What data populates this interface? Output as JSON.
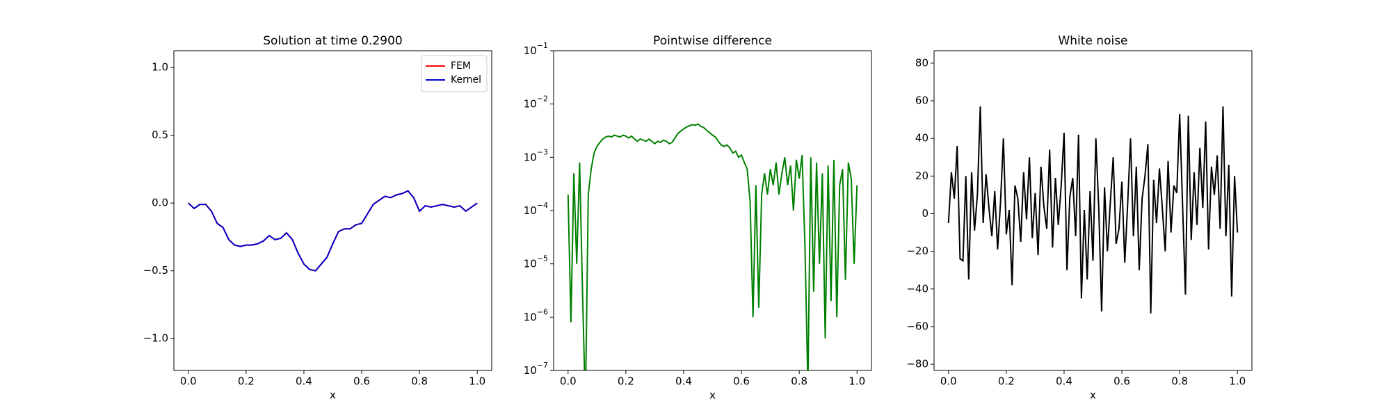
{
  "chart_data": [
    {
      "type": "line",
      "title": "Solution at time 0.2900",
      "xlabel": "x",
      "xlim": [
        -0.05,
        1.05
      ],
      "ylim": [
        -1.235,
        1.124
      ],
      "xticks": [
        {
          "value": 0,
          "label": "0.0"
        },
        {
          "value": 0.2,
          "label": "0.2"
        },
        {
          "value": 0.4,
          "label": "0.4"
        },
        {
          "value": 0.6,
          "label": "0.6"
        },
        {
          "value": 0.8,
          "label": "0.8"
        },
        {
          "value": 1,
          "label": "1.0"
        }
      ],
      "yticks": [
        {
          "value": -1,
          "label": "−1.0"
        },
        {
          "value": -0.5,
          "label": "−0.5"
        },
        {
          "value": 0,
          "label": "0.0"
        },
        {
          "value": 0.5,
          "label": "0.5"
        },
        {
          "value": 1,
          "label": "1.0"
        }
      ],
      "legend": "upper right",
      "x": [
        0,
        0.02,
        0.04,
        0.06,
        0.08,
        0.1,
        0.12,
        0.14,
        0.16,
        0.18,
        0.2,
        0.22,
        0.24,
        0.26,
        0.28,
        0.3,
        0.32,
        0.34,
        0.36,
        0.38,
        0.4,
        0.42,
        0.44,
        0.46,
        0.48,
        0.5,
        0.52,
        0.54,
        0.56,
        0.58,
        0.6,
        0.62,
        0.64,
        0.66,
        0.68,
        0.7,
        0.72,
        0.74,
        0.76,
        0.78,
        0.8,
        0.82,
        0.84,
        0.86,
        0.88,
        0.9,
        0.92,
        0.94,
        0.96,
        0.98,
        1
      ],
      "series": [
        {
          "name": "FEM",
          "color": "#ff0000",
          "values": [
            0,
            -0.04,
            -0.01,
            -0.01,
            -0.06,
            -0.15,
            -0.18,
            -0.27,
            -0.31,
            -0.32,
            -0.31,
            -0.31,
            -0.3,
            -0.28,
            -0.24,
            -0.27,
            -0.26,
            -0.22,
            -0.27,
            -0.37,
            -0.45,
            -0.49,
            -0.5,
            -0.45,
            -0.4,
            -0.3,
            -0.21,
            -0.19,
            -0.19,
            -0.16,
            -0.15,
            -0.08,
            -0.01,
            0.02,
            0.05,
            0.04,
            0.06,
            0.07,
            0.09,
            0.04,
            -0.06,
            -0.02,
            -0.03,
            -0.02,
            -0.01,
            -0.02,
            -0.03,
            -0.02,
            -0.06,
            -0.03,
            0
          ]
        },
        {
          "name": "Kernel",
          "color": "#0000cc",
          "values": [
            0,
            -0.04,
            -0.01,
            -0.01,
            -0.06,
            -0.15,
            -0.18,
            -0.27,
            -0.31,
            -0.32,
            -0.31,
            -0.31,
            -0.3,
            -0.28,
            -0.24,
            -0.27,
            -0.26,
            -0.22,
            -0.27,
            -0.37,
            -0.45,
            -0.49,
            -0.5,
            -0.45,
            -0.4,
            -0.3,
            -0.21,
            -0.19,
            -0.19,
            -0.16,
            -0.15,
            -0.08,
            -0.01,
            0.02,
            0.05,
            0.04,
            0.06,
            0.07,
            0.09,
            0.04,
            -0.06,
            -0.02,
            -0.03,
            -0.02,
            -0.01,
            -0.02,
            -0.03,
            -0.02,
            -0.06,
            -0.03,
            0
          ]
        }
      ]
    },
    {
      "type": "line",
      "title": "Pointwise difference",
      "xlabel": "x",
      "yscale": "log",
      "xlim": [
        -0.05,
        1.05
      ],
      "ylim": [
        1e-07,
        0.1
      ],
      "xticks": [
        {
          "value": 0,
          "label": "0.0"
        },
        {
          "value": 0.2,
          "label": "0.2"
        },
        {
          "value": 0.4,
          "label": "0.4"
        },
        {
          "value": 0.6,
          "label": "0.6"
        },
        {
          "value": 0.8,
          "label": "0.8"
        },
        {
          "value": 1,
          "label": "1.0"
        }
      ],
      "yticks": [
        {
          "value": 1e-07,
          "label": "10−7"
        },
        {
          "value": 1e-06,
          "label": "10−6"
        },
        {
          "value": 1e-05,
          "label": "10−5"
        },
        {
          "value": 0.0001,
          "label": "10−4"
        },
        {
          "value": 0.001,
          "label": "10−3"
        },
        {
          "value": 0.01,
          "label": "10−2"
        },
        {
          "value": 0.1,
          "label": "10−1"
        }
      ],
      "x": [
        0,
        0.01,
        0.02,
        0.03,
        0.04,
        0.05,
        0.06,
        0.07,
        0.08,
        0.09,
        0.1,
        0.11,
        0.12,
        0.13,
        0.14,
        0.15,
        0.16,
        0.17,
        0.18,
        0.19,
        0.2,
        0.21,
        0.22,
        0.23,
        0.24,
        0.25,
        0.26,
        0.27,
        0.28,
        0.29,
        0.3,
        0.31,
        0.32,
        0.33,
        0.34,
        0.35,
        0.36,
        0.37,
        0.38,
        0.39,
        0.4,
        0.41,
        0.42,
        0.43,
        0.44,
        0.45,
        0.46,
        0.47,
        0.48,
        0.49,
        0.5,
        0.51,
        0.52,
        0.53,
        0.54,
        0.55,
        0.56,
        0.57,
        0.58,
        0.59,
        0.6,
        0.61,
        0.62,
        0.63,
        0.64,
        0.65,
        0.66,
        0.67,
        0.68,
        0.69,
        0.7,
        0.71,
        0.72,
        0.73,
        0.74,
        0.75,
        0.76,
        0.77,
        0.78,
        0.79,
        0.8,
        0.81,
        0.82,
        0.83,
        0.84,
        0.85,
        0.86,
        0.87,
        0.88,
        0.89,
        0.9,
        0.91,
        0.92,
        0.93,
        0.94,
        0.95,
        0.96,
        0.97,
        0.98,
        0.99,
        1
      ],
      "series": [
        {
          "color": "#008000",
          "values": [
            0.0002,
            8e-07,
            0.0005,
            1e-05,
            0.0008,
            3e-06,
            2e-08,
            0.0002,
            0.0006,
            0.0012,
            0.0016,
            0.0019,
            0.0022,
            0.0024,
            0.0025,
            0.0024,
            0.0026,
            0.0025,
            0.0024,
            0.0026,
            0.0025,
            0.0023,
            0.0025,
            0.0022,
            0.002,
            0.0022,
            0.0021,
            0.002,
            0.0022,
            0.002,
            0.0018,
            0.002,
            0.0019,
            0.0021,
            0.002,
            0.0018,
            0.0019,
            0.0023,
            0.0028,
            0.0031,
            0.0034,
            0.0037,
            0.0039,
            0.0041,
            0.004,
            0.0042,
            0.0038,
            0.0036,
            0.0032,
            0.0029,
            0.0026,
            0.0024,
            0.002,
            0.0017,
            0.0016,
            0.0017,
            0.0015,
            0.0012,
            0.0013,
            0.001,
            0.0011,
            0.0008,
            0.0006,
            0.00015,
            1e-06,
            0.0003,
            1.5e-06,
            0.0002,
            0.0005,
            0.0002,
            0.0006,
            0.0003,
            0.0008,
            0.0002,
            0.0005,
            0.001,
            0.0003,
            0.0007,
            0.0001,
            0.0009,
            0.0004,
            0.0011,
            2e-05,
            5e-08,
            0.001,
            3e-06,
            0.0008,
            1e-05,
            0.0005,
            4e-07,
            0.0007,
            2e-06,
            0.0009,
            1e-06,
            0.0003,
            0.0006,
            5e-06,
            0.0008,
            0.0004,
            1e-05,
            0.0003
          ]
        }
      ]
    },
    {
      "type": "line",
      "title": "White noise",
      "xlabel": "x",
      "xlim": [
        -0.05,
        1.05
      ],
      "ylim": [
        -83.3,
        86.6
      ],
      "xticks": [
        {
          "value": 0,
          "label": "0.0"
        },
        {
          "value": 0.2,
          "label": "0.2"
        },
        {
          "value": 0.4,
          "label": "0.4"
        },
        {
          "value": 0.6,
          "label": "0.6"
        },
        {
          "value": 0.8,
          "label": "0.8"
        },
        {
          "value": 1,
          "label": "1.0"
        }
      ],
      "yticks": [
        {
          "value": -80,
          "label": "−80"
        },
        {
          "value": -60,
          "label": "−60"
        },
        {
          "value": -40,
          "label": "−40"
        },
        {
          "value": -20,
          "label": "−20"
        },
        0,
        20,
        40,
        60,
        80
      ],
      "x": [
        0,
        0.01,
        0.02,
        0.03,
        0.04,
        0.05,
        0.06,
        0.07,
        0.08,
        0.09,
        0.1,
        0.11,
        0.12,
        0.13,
        0.14,
        0.15,
        0.16,
        0.17,
        0.18,
        0.19,
        0.2,
        0.21,
        0.22,
        0.23,
        0.24,
        0.25,
        0.26,
        0.27,
        0.28,
        0.29,
        0.3,
        0.31,
        0.32,
        0.33,
        0.34,
        0.35,
        0.36,
        0.37,
        0.38,
        0.39,
        0.4,
        0.41,
        0.42,
        0.43,
        0.44,
        0.45,
        0.46,
        0.47,
        0.48,
        0.49,
        0.5,
        0.51,
        0.52,
        0.53,
        0.54,
        0.55,
        0.56,
        0.57,
        0.58,
        0.59,
        0.6,
        0.61,
        0.62,
        0.63,
        0.64,
        0.65,
        0.66,
        0.67,
        0.68,
        0.69,
        0.7,
        0.71,
        0.72,
        0.73,
        0.74,
        0.75,
        0.76,
        0.77,
        0.78,
        0.79,
        0.8,
        0.81,
        0.82,
        0.83,
        0.84,
        0.85,
        0.86,
        0.87,
        0.88,
        0.89,
        0.9,
        0.91,
        0.92,
        0.93,
        0.94,
        0.95,
        0.96,
        0.97,
        0.98,
        0.99,
        1
      ],
      "series": [
        {
          "color": "#000000",
          "values": [
            -5,
            22,
            8,
            36,
            -24,
            -25,
            20,
            -35,
            22,
            -9,
            10,
            57,
            -5,
            21,
            3,
            -12,
            12,
            -19,
            6,
            40,
            -11,
            2,
            -38,
            15,
            8,
            -15,
            22,
            -3,
            30,
            -13,
            11,
            -22,
            25,
            4,
            -8,
            34,
            -18,
            19,
            -6,
            15,
            43,
            -30,
            9,
            19,
            -12,
            42,
            -45,
            2,
            -35,
            12,
            -25,
            40,
            3,
            -52,
            14,
            -20,
            6,
            30,
            -16,
            -8,
            17,
            -26,
            5,
            40,
            -12,
            25,
            -30,
            8,
            20,
            37,
            -53,
            18,
            -5,
            24,
            3,
            -20,
            28,
            -10,
            15,
            11,
            53,
            5,
            -43,
            52,
            -14,
            22,
            -6,
            35,
            3,
            49,
            -19,
            25,
            10,
            31,
            -8,
            57,
            -12,
            26,
            -44,
            20,
            -10
          ]
        }
      ]
    }
  ]
}
